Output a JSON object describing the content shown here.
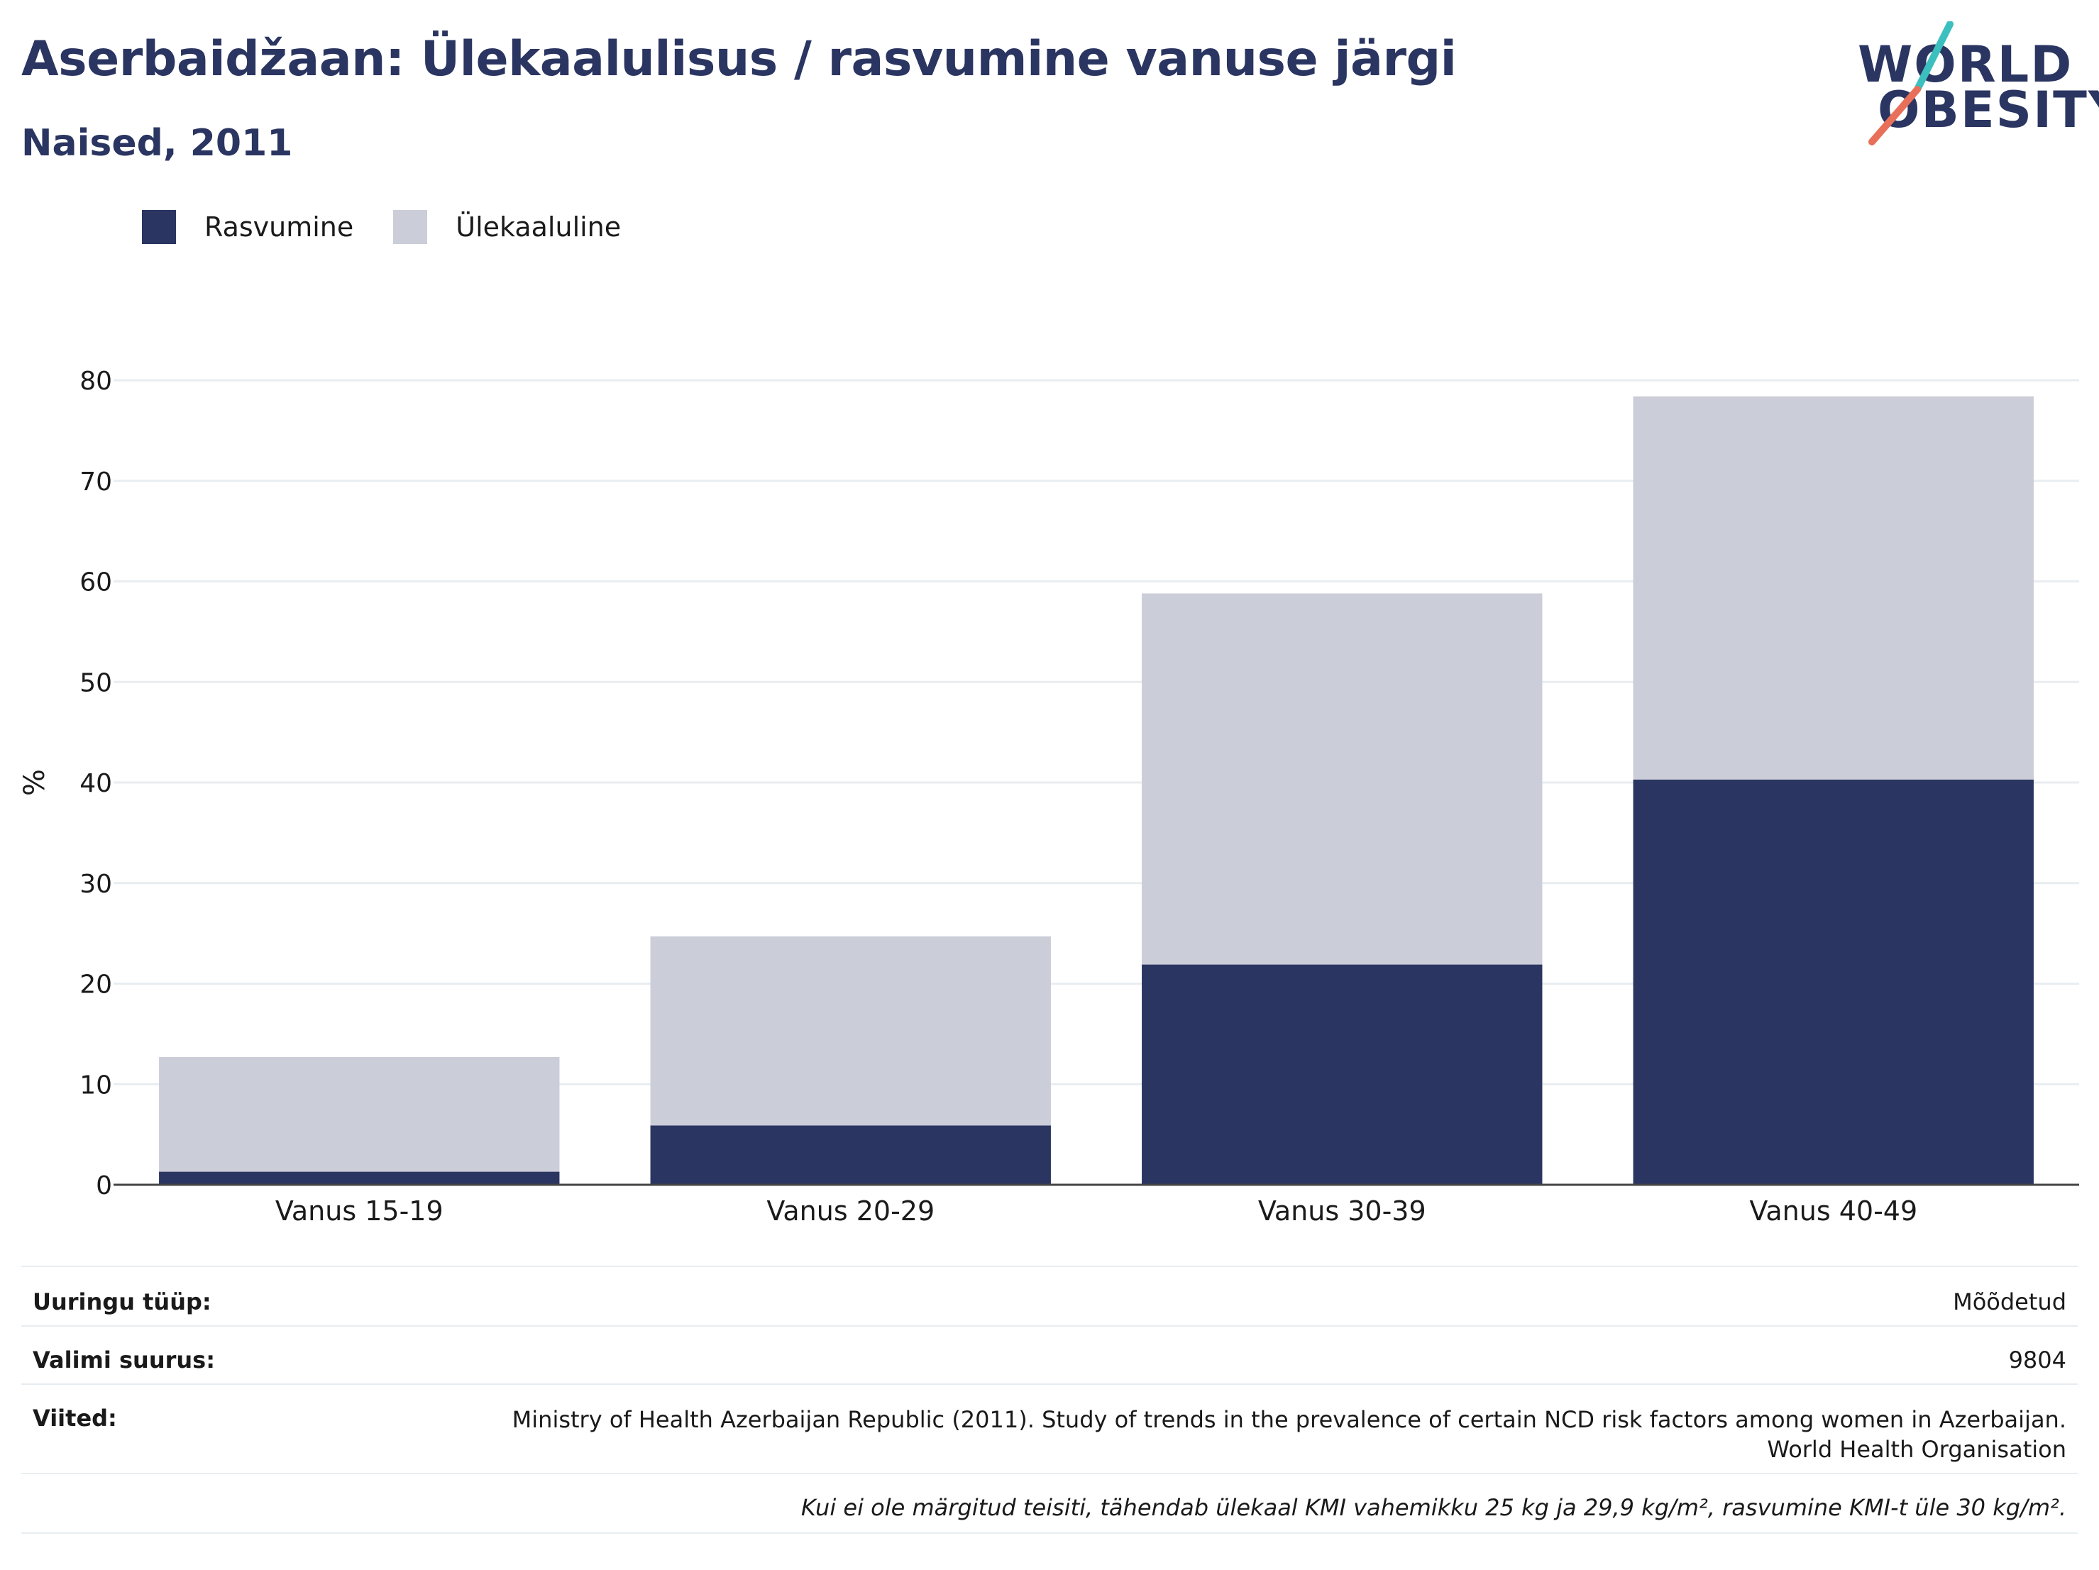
{
  "header": {
    "title": "Aserbaidžaan: Ülekaalulisus / rasvumine vanuse järgi",
    "subtitle": "Naised, 2011"
  },
  "logo": {
    "line1": "WORLD",
    "line2": "OBESITY",
    "colors": {
      "text": "#2a3561",
      "slash_top": "#3bbfbf",
      "slash_bottom": "#e8705a"
    }
  },
  "chart_data": {
    "type": "bar",
    "stacked": true,
    "categories": [
      "Vanus 15-19",
      "Vanus 20-29",
      "Vanus 30-39",
      "Vanus 40-49"
    ],
    "series": [
      {
        "name": "Rasvumine",
        "color": "#2a3561",
        "values": [
          1.3,
          5.9,
          21.9,
          40.3
        ]
      },
      {
        "name": "Ülekaaluline",
        "color": "#cbcdd8",
        "values": [
          11.4,
          18.8,
          36.9,
          38.1
        ]
      }
    ],
    "ylabel": "%",
    "ylim": [
      0,
      80
    ],
    "yticks": [
      0,
      10,
      20,
      30,
      40,
      50,
      60,
      70,
      80
    ],
    "grid": true,
    "legend_position": "top-left"
  },
  "meta": {
    "survey_type_label": "Uuringu tüüp:",
    "survey_type_value": "Mõõdetud",
    "sample_size_label": "Valimi suurus:",
    "sample_size_value": "9804",
    "references_label": "Viited:",
    "references_line1": "Ministry of Health Azerbaijan Republic (2011). Study of trends in the prevalence of certain NCD risk factors among women in Azerbaijan.",
    "references_line2": "World Health Organisation",
    "footnote": "Kui ei ole märgitud teisiti, tähendab ülekaal KMI vahemikku 25 kg ja 29,9 kg/m², rasvumine KMI-t üle 30 kg/m²."
  }
}
